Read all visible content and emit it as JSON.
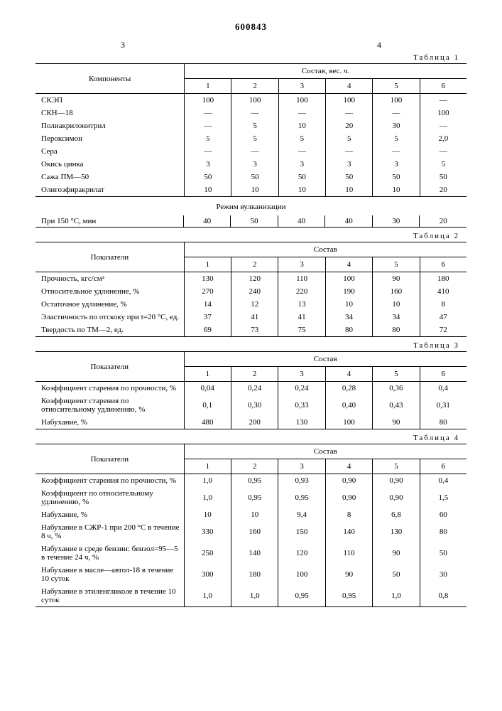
{
  "doc_number": "600843",
  "col_left": "3",
  "col_right": "4",
  "table1": {
    "label": "Таблица 1",
    "header_main": "Компоненты",
    "header_group": "Состав, вес. ч.",
    "cols": [
      "1",
      "2",
      "3",
      "4",
      "5",
      "6"
    ],
    "rows": [
      {
        "label": "СКЭП",
        "v": [
          "100",
          "100",
          "100",
          "100",
          "100",
          "—"
        ]
      },
      {
        "label": "СКН—18",
        "v": [
          "—",
          "—",
          "—",
          "—",
          "—",
          "100"
        ]
      },
      {
        "label": "Полиакрилонитрил",
        "v": [
          "—",
          "5",
          "10",
          "20",
          "30",
          "—"
        ]
      },
      {
        "label": "Пероксимон",
        "v": [
          "5",
          "5",
          "5",
          "5",
          "5",
          "2,0"
        ]
      },
      {
        "label": "Сера",
        "v": [
          "—",
          "—",
          "—",
          "—",
          "—",
          "—"
        ]
      },
      {
        "label": "Окись цинка",
        "v": [
          "3",
          "3",
          "3",
          "3",
          "3",
          "5"
        ]
      },
      {
        "label": "Сажа ПМ—50",
        "v": [
          "50",
          "50",
          "50",
          "50",
          "50",
          "50"
        ]
      },
      {
        "label": "Олигоэфиракрилат",
        "v": [
          "10",
          "10",
          "10",
          "10",
          "10",
          "20"
        ]
      }
    ],
    "regime_title": "Режим вулканизации",
    "regime_label": "При 150 °С, мин",
    "regime_vals": [
      "40",
      "50",
      "40",
      "40",
      "30",
      "20"
    ]
  },
  "table2": {
    "label": "Таблица 2",
    "header_main": "Показатели",
    "header_group": "Состав",
    "cols": [
      "1",
      "2",
      "3",
      "4",
      "5",
      "6"
    ],
    "rows": [
      {
        "label": "Прочность, кгс/см²",
        "v": [
          "130",
          "120",
          "110",
          "100",
          "90",
          "180"
        ]
      },
      {
        "label": "Относительное удлинение, %",
        "v": [
          "270",
          "240",
          "220",
          "190",
          "160",
          "410"
        ]
      },
      {
        "label": "Остаточное удлинение, %",
        "v": [
          "14",
          "12",
          "13",
          "10",
          "10",
          "8"
        ]
      },
      {
        "label": "Эластичность по отскоку при t=20 °С, ед.",
        "v": [
          "37",
          "41",
          "41",
          "34",
          "34",
          "47"
        ]
      },
      {
        "label": "Твердость по ТМ—2, ед.",
        "v": [
          "69",
          "73",
          "75",
          "80",
          "80",
          "72"
        ]
      }
    ]
  },
  "table3": {
    "label": "Таблица 3",
    "header_main": "Показатели",
    "header_group": "Состав",
    "cols": [
      "1",
      "2",
      "3",
      "4",
      "5",
      "6"
    ],
    "rows": [
      {
        "label": "Коэффициент старения по прочности, %",
        "v": [
          "0,04",
          "0,24",
          "0,24",
          "0,28",
          "0,36",
          "0,4"
        ]
      },
      {
        "label": "Коэффициент старения по относительному удлинению, %",
        "v": [
          "0,1",
          "0,30",
          "0,33",
          "0,40",
          "0,43",
          "0,31"
        ]
      },
      {
        "label": "Набухание, %",
        "v": [
          "480",
          "200",
          "130",
          "100",
          "90",
          "80"
        ]
      }
    ]
  },
  "table4": {
    "label": "Таблица 4",
    "header_main": "Показатели",
    "header_group": "Состав",
    "cols": [
      "1",
      "2",
      "3",
      "4",
      "5",
      "6"
    ],
    "rows": [
      {
        "label": "Коэффициент старения по прочности, %",
        "v": [
          "1,0",
          "0,95",
          "0,93",
          "0,90",
          "0,90",
          "0,4"
        ]
      },
      {
        "label": "Коэффициент по относительному удлинению, %",
        "v": [
          "1,0",
          "0,95",
          "0,95",
          "0,90",
          "0,90",
          "1,5"
        ]
      },
      {
        "label": "Набухание, %",
        "v": [
          "10",
          "10",
          "9,4",
          "8",
          "6,8",
          "60"
        ]
      },
      {
        "label": "Набухание в СЖР-1 при 200 °С в течение 8 ч, %",
        "v": [
          "330",
          "160",
          "150",
          "140",
          "130",
          "80"
        ]
      },
      {
        "label": "Набухание в среде бензин: бензол=95—5 в течение 24 ч, %",
        "v": [
          "250",
          "140",
          "120",
          "110",
          "90",
          "50"
        ]
      },
      {
        "label": "Набухание в масле—автол-18 в течение 10 суток",
        "v": [
          "300",
          "180",
          "100",
          "90",
          "50",
          "30"
        ]
      },
      {
        "label": "Набухание в этиленгликоле в течение 10 суток",
        "v": [
          "1,0",
          "1,0",
          "0,95",
          "0,95",
          "1,0",
          "0,8"
        ]
      }
    ]
  }
}
